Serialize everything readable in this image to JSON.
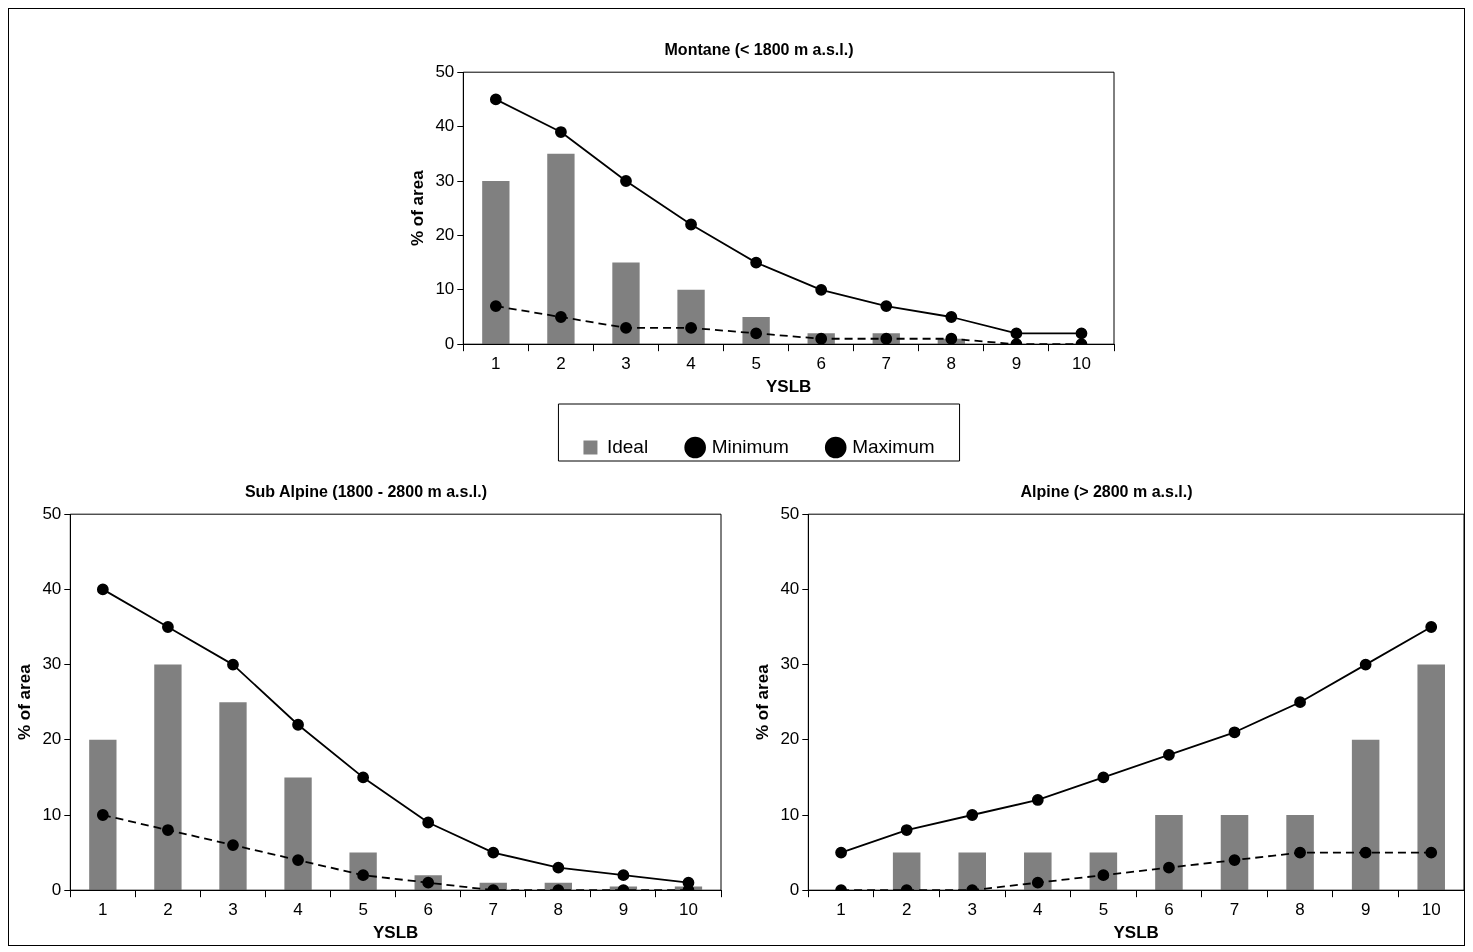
{
  "chart_data": [
    {
      "type": "bar",
      "title": "Montane (< 1800 m a.s.l.)",
      "xlabel": "YSLB",
      "ylabel": "% of area",
      "categories": [
        "1",
        "2",
        "3",
        "4",
        "5",
        "6",
        "7",
        "8",
        "9",
        "10"
      ],
      "ylim": [
        0,
        50
      ],
      "yticks": [
        0,
        10,
        20,
        30,
        40,
        50
      ],
      "grid": false,
      "legend": "bottom",
      "series": [
        {
          "name": "Ideal",
          "type": "bar",
          "color": "#808080",
          "values": [
            30,
            35,
            15,
            10,
            5,
            2,
            2,
            1,
            0,
            0
          ]
        },
        {
          "name": "Minimum",
          "type": "line",
          "color": "#000000",
          "line_style": "dashed",
          "marker": "circle",
          "values": [
            7,
            5,
            3,
            3,
            2,
            1,
            1,
            1,
            0,
            0
          ]
        },
        {
          "name": "Maximum",
          "type": "line",
          "color": "#000000",
          "line_style": "solid",
          "marker": "circle",
          "values": [
            45,
            39,
            30,
            22,
            15,
            10,
            7,
            5,
            2,
            2
          ]
        }
      ]
    },
    {
      "type": "bar",
      "title": "Sub Alpine (1800 - 2800 m a.s.l.)",
      "xlabel": "YSLB",
      "ylabel": "% of area",
      "categories": [
        "1",
        "2",
        "3",
        "4",
        "5",
        "6",
        "7",
        "8",
        "9",
        "10"
      ],
      "ylim": [
        0,
        50
      ],
      "yticks": [
        0,
        10,
        20,
        30,
        40,
        50
      ],
      "grid": false,
      "legend": false,
      "series": [
        {
          "type": "bar",
          "color": "#808080",
          "values": [
            20,
            30,
            25,
            15,
            5,
            2,
            1,
            1,
            0.5,
            0.5
          ]
        },
        {
          "type": "line",
          "color": "#000000",
          "line_style": "dashed",
          "marker": "circle",
          "values": [
            10,
            8,
            6,
            4,
            2,
            1,
            0,
            0,
            0,
            0
          ]
        },
        {
          "type": "line",
          "color": "#000000",
          "line_style": "solid",
          "marker": "circle",
          "values": [
            40,
            35,
            30,
            22,
            15,
            9,
            5,
            3,
            2,
            1
          ]
        }
      ]
    },
    {
      "type": "bar",
      "title": "Alpine (> 2800 m a.s.l.)",
      "xlabel": "YSLB",
      "ylabel": "% of area",
      "categories": [
        "1",
        "2",
        "3",
        "4",
        "5",
        "6",
        "7",
        "8",
        "9",
        "10"
      ],
      "ylim": [
        0,
        50
      ],
      "yticks": [
        0,
        10,
        20,
        30,
        40,
        50
      ],
      "grid": false,
      "legend": false,
      "series": [
        {
          "type": "bar",
          "color": "#808080",
          "values": [
            0,
            5,
            5,
            5,
            5,
            10,
            10,
            10,
            20,
            30
          ]
        },
        {
          "type": "line",
          "color": "#000000",
          "line_style": "dashed",
          "marker": "circle",
          "values": [
            0,
            0,
            0,
            1,
            2,
            3,
            4,
            5,
            5,
            5
          ]
        },
        {
          "type": "line",
          "color": "#000000",
          "line_style": "solid",
          "marker": "circle",
          "values": [
            5,
            8,
            10,
            12,
            15,
            18,
            21,
            25,
            30,
            35
          ]
        }
      ]
    }
  ]
}
